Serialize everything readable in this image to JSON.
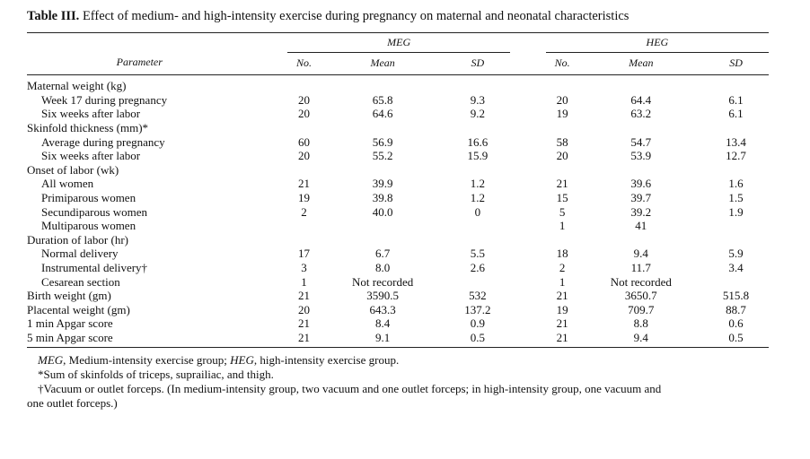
{
  "caption": {
    "label": "Table III.",
    "text": " Effect of medium- and high-intensity exercise during pregnancy on maternal and neonatal characteristics"
  },
  "header": {
    "group1": "MEG",
    "group2": "HEG",
    "parameter": "Parameter",
    "no": "No.",
    "mean": "Mean",
    "sd": "SD"
  },
  "rows": [
    {
      "label": "Maternal weight (kg)",
      "indent": false,
      "cells": [
        "",
        "",
        "",
        "",
        "",
        ""
      ]
    },
    {
      "label": "Week 17 during pregnancy",
      "indent": true,
      "cells": [
        "20",
        "65.8",
        "9.3",
        "20",
        "64.4",
        "6.1"
      ]
    },
    {
      "label": "Six weeks after labor",
      "indent": true,
      "cells": [
        "20",
        "64.6",
        "9.2",
        "19",
        "63.2",
        "6.1"
      ]
    },
    {
      "label": "Skinfold thickness (mm)*",
      "indent": false,
      "cells": [
        "",
        "",
        "",
        "",
        "",
        ""
      ]
    },
    {
      "label": "Average during pregnancy",
      "indent": true,
      "cells": [
        "60",
        "56.9",
        "16.6",
        "58",
        "54.7",
        "13.4"
      ]
    },
    {
      "label": "Six weeks after labor",
      "indent": true,
      "cells": [
        "20",
        "55.2",
        "15.9",
        "20",
        "53.9",
        "12.7"
      ]
    },
    {
      "label": "Onset of labor (wk)",
      "indent": false,
      "cells": [
        "",
        "",
        "",
        "",
        "",
        ""
      ]
    },
    {
      "label": "All women",
      "indent": true,
      "cells": [
        "21",
        "39.9",
        "1.2",
        "21",
        "39.6",
        "1.6"
      ]
    },
    {
      "label": "Primiparous women",
      "indent": true,
      "cells": [
        "19",
        "39.8",
        "1.2",
        "15",
        "39.7",
        "1.5"
      ]
    },
    {
      "label": "Secundiparous women",
      "indent": true,
      "cells": [
        "2",
        "40.0",
        "0",
        "5",
        "39.2",
        "1.9"
      ]
    },
    {
      "label": "Multiparous women",
      "indent": true,
      "cells": [
        "",
        "",
        "",
        "1",
        "41",
        ""
      ]
    },
    {
      "label": "Duration of labor (hr)",
      "indent": false,
      "cells": [
        "",
        "",
        "",
        "",
        "",
        ""
      ]
    },
    {
      "label": "Normal delivery",
      "indent": true,
      "cells": [
        "17",
        "6.7",
        "5.5",
        "18",
        "9.4",
        "5.9"
      ]
    },
    {
      "label": "Instrumental delivery†",
      "indent": true,
      "cells": [
        "3",
        "8.0",
        "2.6",
        "2",
        "11.7",
        "3.4"
      ]
    },
    {
      "label": "Cesarean section",
      "indent": true,
      "cells": [
        "1",
        "Not recorded",
        "",
        "1",
        "Not recorded",
        ""
      ]
    },
    {
      "label": "Birth weight (gm)",
      "indent": false,
      "cells": [
        "21",
        "3590.5",
        "532",
        "21",
        "3650.7",
        "515.8"
      ]
    },
    {
      "label": "Placental weight (gm)",
      "indent": false,
      "cells": [
        "20",
        "643.3",
        "137.2",
        "19",
        "709.7",
        "88.7"
      ]
    },
    {
      "label": "1 min Apgar score",
      "indent": false,
      "cells": [
        "21",
        "8.4",
        "0.9",
        "21",
        "8.8",
        "0.6"
      ]
    },
    {
      "label": "5 min Apgar score",
      "indent": false,
      "cells": [
        "21",
        "9.1",
        "0.5",
        "21",
        "9.4",
        "0.5"
      ]
    }
  ],
  "footnotes": {
    "abbr_meg": "MEG",
    "abbr_meg_text": ", Medium-intensity exercise group; ",
    "abbr_heg": "HEG",
    "abbr_heg_text": ", high-intensity exercise group.",
    "star": "*Sum of skinfolds of triceps, suprailiac, and thigh.",
    "dagger_line1": "†Vacuum or outlet forceps. (In medium-intensity group, two vacuum and one outlet forceps; in high-intensity group, one vacuum and",
    "dagger_line2": "one outlet forceps.)"
  }
}
